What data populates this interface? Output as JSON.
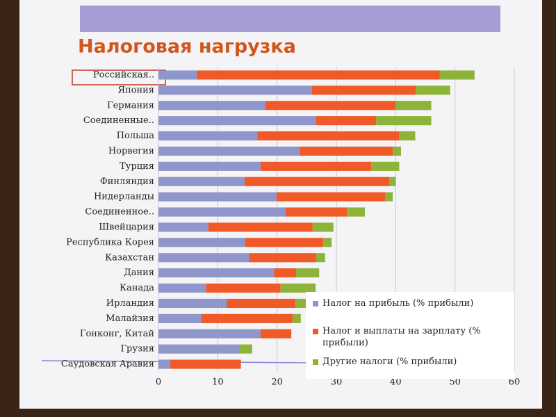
{
  "chart_data": {
    "type": "stacked-barh",
    "title": "Налоговая нагрузка",
    "categories": [
      "Российская..",
      "Япония",
      "Германия",
      "Соединенные..",
      "Польша",
      "Норвегия",
      "Турция",
      "Финляндия",
      "Нидерланды",
      "Соединенное..",
      "Швейцария",
      "Республика Корея",
      "Казахстан",
      "Дания",
      "Канада",
      "Ирландия",
      "Малайзия",
      "Гонконг, Китай",
      "Грузия",
      "Саудовская Аравия"
    ],
    "series": [
      {
        "name": "Налог на прибыль (% прибыли)",
        "color": "#8e96cc",
        "values": [
          6.5,
          25.9,
          18,
          26.6,
          16.7,
          23.8,
          17.2,
          14.5,
          19.9,
          21.4,
          8.4,
          14.6,
          15.3,
          19.5,
          8,
          11.5,
          7.2,
          17.2,
          13.6,
          2
        ]
      },
      {
        "name": "Налог и выплаты на зарплату (% прибыли)",
        "color": "#f05a28",
        "values": [
          40.9,
          17.5,
          22,
          10.1,
          23.9,
          15.7,
          18.7,
          24.4,
          18.3,
          10.4,
          17.6,
          13.2,
          11.3,
          3.7,
          12.6,
          11.6,
          15.4,
          5.2,
          0,
          11.9
        ]
      },
      {
        "name": "Другие налоги (% прибыли)",
        "color": "#8db33a",
        "values": [
          5.9,
          5.8,
          6,
          9.3,
          2.7,
          1.4,
          4.7,
          1.1,
          1.3,
          3,
          3.5,
          1.4,
          1.5,
          3.9,
          5.9,
          2.6,
          1.4,
          0,
          2.2,
          0
        ]
      }
    ],
    "xlim": [
      0,
      60
    ],
    "xticks": [
      0,
      10,
      20,
      30,
      40,
      50,
      60
    ],
    "grid": true
  }
}
